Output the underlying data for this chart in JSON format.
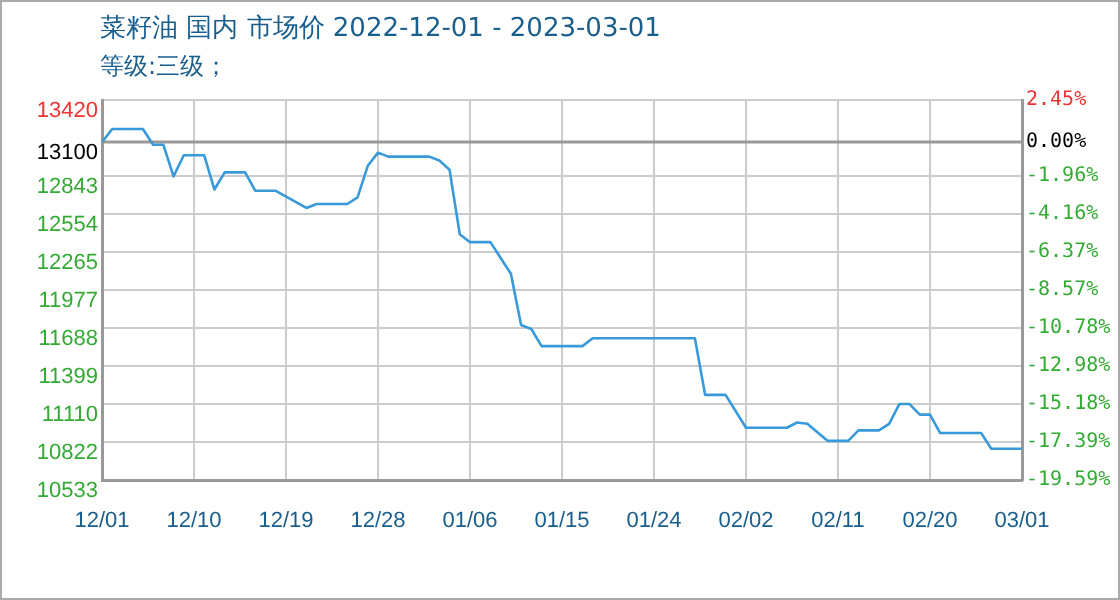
{
  "chart_data": {
    "type": "line",
    "title": "菜籽油 国内 市场价 2022-12-01 - 2023-03-01",
    "subtitle": "等级:三级；",
    "x": [
      "2022-12-01",
      "2022-12-02",
      "2022-12-05",
      "2022-12-06",
      "2022-12-07",
      "2022-12-08",
      "2022-12-09",
      "2022-12-11",
      "2022-12-12",
      "2022-12-13",
      "2022-12-15",
      "2022-12-16",
      "2022-12-18",
      "2022-12-21",
      "2022-12-22",
      "2022-12-25",
      "2022-12-26",
      "2022-12-27",
      "2022-12-28",
      "2022-12-29",
      "2023-01-02",
      "2023-01-03",
      "2023-01-04",
      "2023-01-05",
      "2023-01-06",
      "2023-01-08",
      "2023-01-09",
      "2023-01-10",
      "2023-01-11",
      "2023-01-12",
      "2023-01-13",
      "2023-01-17",
      "2023-01-18",
      "2023-01-28",
      "2023-01-29",
      "2023-01-31",
      "2023-02-02",
      "2023-02-06",
      "2023-02-07",
      "2023-02-08",
      "2023-02-10",
      "2023-02-12",
      "2023-02-13",
      "2023-02-15",
      "2023-02-16",
      "2023-02-17",
      "2023-02-18",
      "2023-02-19",
      "2023-02-20",
      "2023-02-21",
      "2023-02-25",
      "2023-02-26",
      "2023-03-01"
    ],
    "series": [
      {
        "color": "#3a9ad9",
        "values": [
          13100,
          13200,
          13200,
          13080,
          13080,
          12840,
          13000,
          13000,
          12740,
          12870,
          12870,
          12730,
          12730,
          12600,
          12630,
          12630,
          12680,
          12920,
          13020,
          12990,
          12990,
          12960,
          12890,
          12400,
          12340,
          12340,
          12220,
          12100,
          11710,
          11680,
          11550,
          11550,
          11610,
          11610,
          11180,
          11180,
          10930,
          10930,
          10970,
          10960,
          10830,
          10830,
          10910,
          10910,
          10960,
          11110,
          11110,
          11030,
          11030,
          10890,
          10890,
          10770,
          10770
        ]
      }
    ],
    "xlim": [
      "2022-12-01",
      "2023-03-01"
    ],
    "xticks": [
      {
        "value": "2022-12-01",
        "label": "12/01"
      },
      {
        "value": "2022-12-10",
        "label": "12/10"
      },
      {
        "value": "2022-12-19",
        "label": "12/19"
      },
      {
        "value": "2022-12-28",
        "label": "12/28"
      },
      {
        "value": "2023-01-06",
        "label": "01/06"
      },
      {
        "value": "2023-01-15",
        "label": "01/15"
      },
      {
        "value": "2023-01-24",
        "label": "01/24"
      },
      {
        "value": "2023-02-02",
        "label": "02/02"
      },
      {
        "value": "2023-02-11",
        "label": "02/11"
      },
      {
        "value": "2023-02-20",
        "label": "02/20"
      },
      {
        "value": "2023-03-01",
        "label": "03/01"
      }
    ],
    "ylim": [
      10533,
      13420
    ],
    "yticks": [
      10533,
      10822,
      11110,
      11399,
      11688,
      11977,
      12265,
      12554,
      12843,
      13100,
      13420
    ],
    "y2lim": [
      -19.59,
      2.45
    ],
    "y2ticks": [
      {
        "value": -19.59,
        "label": "-19.59%"
      },
      {
        "value": -17.39,
        "label": "-17.39%"
      },
      {
        "value": -15.18,
        "label": "-15.18%"
      },
      {
        "value": -12.98,
        "label": "-12.98%"
      },
      {
        "value": -10.78,
        "label": "-10.78%"
      },
      {
        "value": -8.57,
        "label": "-8.57%"
      },
      {
        "value": -6.37,
        "label": "-6.37%"
      },
      {
        "value": -4.16,
        "label": "-4.16%"
      },
      {
        "value": -1.96,
        "label": "-1.96%"
      },
      {
        "value": 0,
        "label": "0.00%"
      },
      {
        "value": 2.45,
        "label": "2.45%"
      }
    ],
    "ref_lines": [
      {
        "axis": "y",
        "value": 13100,
        "color": "#999999"
      }
    ],
    "grid": true,
    "legend": false,
    "marker": "none",
    "line_style": "solid"
  }
}
